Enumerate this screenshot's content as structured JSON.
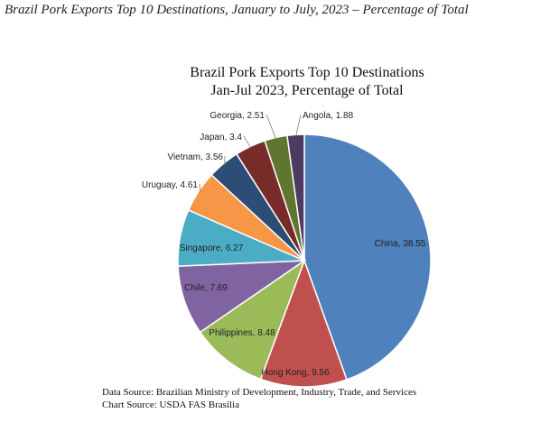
{
  "page_caption": "Brazil Pork Exports Top 10 Destinations, January to July, 2023 – Percentage of Total",
  "chart_data": {
    "type": "pie",
    "title": "Brazil Pork Exports Top 10 Destinations",
    "subtitle": "Jan-Jul 2023, Percentage of Total",
    "label_format": "{name}, {value}",
    "slices": [
      {
        "name": "China",
        "value": 38.55,
        "color": "#4f81bd"
      },
      {
        "name": "Hong Kong",
        "value": 9.56,
        "color": "#c0504d"
      },
      {
        "name": "Philippines",
        "value": 8.48,
        "color": "#9bbb59"
      },
      {
        "name": "Chile",
        "value": 7.69,
        "color": "#8064a2"
      },
      {
        "name": "Singapore",
        "value": 6.27,
        "color": "#4bacc6"
      },
      {
        "name": "Uruguay",
        "value": 4.61,
        "color": "#f79646"
      },
      {
        "name": "Vietnam",
        "value": 3.56,
        "color": "#2c4d75"
      },
      {
        "name": "Japan",
        "value": 3.4,
        "color": "#772c2a"
      },
      {
        "name": "Georgia",
        "value": 2.51,
        "color": "#5f7530"
      },
      {
        "name": "Angola",
        "value": 1.88,
        "color": "#4d3b62"
      }
    ]
  },
  "sources": {
    "data_source": "Data Source: Brazilian Ministry of Development, Industry, Trade, and Services",
    "chart_source": "Chart Source: USDA FAS Brasília"
  }
}
